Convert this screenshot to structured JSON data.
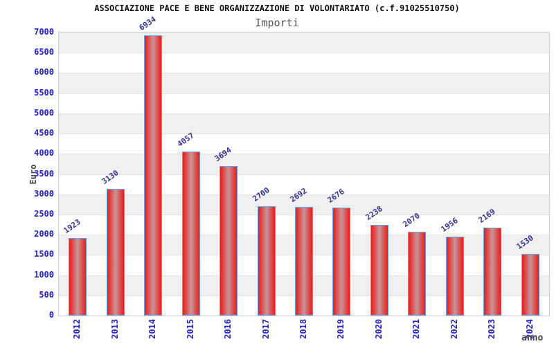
{
  "title": "ASSOCIAZIONE PACE E BENE ORGANIZZAZIONE DI VOLONTARIATO (c.f.91025510750)",
  "subtitle": "Importi",
  "chart_data": {
    "type": "bar",
    "title": "ASSOCIAZIONE PACE E BENE ORGANIZZAZIONE DI VOLONTARIATO (c.f.91025510750)",
    "subtitle": "Importi",
    "xlabel": "anno",
    "ylabel": "Euro",
    "categories": [
      "2012",
      "2013",
      "2014",
      "2015",
      "2016",
      "2017",
      "2018",
      "2019",
      "2020",
      "2021",
      "2022",
      "2023",
      "2024"
    ],
    "values": [
      1923,
      3130,
      6934,
      4057,
      3694,
      2700,
      2692,
      2676,
      2238,
      2070,
      1956,
      2169,
      1530
    ],
    "ylim": [
      0,
      7000
    ],
    "yticks": [
      0,
      500,
      1000,
      1500,
      2000,
      2500,
      3000,
      3500,
      4000,
      4500,
      5000,
      5500,
      6000,
      6500,
      7000
    ],
    "grid": true,
    "legend": null,
    "colors": {
      "bar_edge": "#ec1c1c",
      "bar_center": "#c98f92",
      "bar_border": "#58a8ee",
      "tick_label": "#2222cc",
      "value_label": "#333399",
      "band_gray": "#f0f0f0",
      "band_white": "#ffffff",
      "plot_border": "#cccccc",
      "axis_title": "#444444",
      "title_color": "#111111",
      "subtitle_color": "#555555"
    }
  }
}
